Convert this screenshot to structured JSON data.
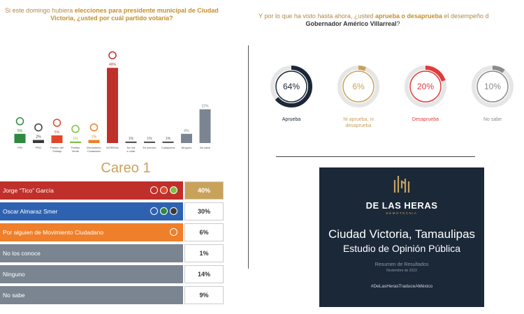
{
  "left_question": {
    "pre": "Si este domingo hubiera ",
    "bold": "elecciones para presidente municipal de Ciudad Victoria",
    "post": ",  ¿usted por cuál partido votaría?"
  },
  "right_question": {
    "pre": "Y por lo que ha visto hasta ahora, ¿usted ",
    "bold": "aprueba o desaprueba",
    "post": " el desempeño d",
    "line2": "Gobernador Américo Villarreal",
    "line2_end": "?"
  },
  "chart_data": [
    {
      "type": "bar",
      "categories": [
        "",
        "PRI",
        "PRD",
        "Partido del Trabajo",
        "Partido Verde",
        "Movimiento Ciudadano",
        "MORENA",
        "No iría a votar",
        "Es secreto",
        "Cualquiera",
        "Ninguno",
        "No sabe"
      ],
      "values": [
        null,
        6,
        2,
        5,
        1,
        2,
        49,
        1,
        1,
        1,
        6,
        22
      ],
      "data_labels": [
        "",
        "6%",
        "2%",
        "5%",
        "1%",
        "2%",
        "49%",
        "1%",
        "1%",
        "1%",
        "6%",
        "22%"
      ],
      "colors": [
        "#2e62b0",
        "#2d8a3e",
        "#3a3a3a",
        "#e0472a",
        "#7bc043",
        "#ef7f2a",
        "#c0302a",
        "#555555",
        "#555555",
        "#555555",
        "#7a8591",
        "#7a8591"
      ],
      "ylim": [
        0,
        50
      ]
    },
    {
      "type": "table",
      "title": "Careo 1",
      "rows": [
        {
          "label": "Jorge “Tico” García",
          "value": "40%",
          "color": "#c0302a"
        },
        {
          "label": "Oscar Almaraz Smer",
          "value": "30%",
          "color": "#2e62b0"
        },
        {
          "label": "Por alguien de Movimiento Ciudadano",
          "value": "6%",
          "color": "#ef7f2a"
        },
        {
          "label": "No los conoce",
          "value": "1%",
          "color": "#7a8591"
        },
        {
          "label": "Ninguno",
          "value": "14%",
          "color": "#7a8591"
        },
        {
          "label": "No sabe",
          "value": "9%",
          "color": "#7a8591"
        }
      ]
    },
    {
      "type": "pie",
      "categories": [
        "Aprueba",
        "Ni aprueba, ni desaprueba",
        "Desaprueba",
        "No sabe"
      ],
      "values": [
        64,
        6,
        20,
        10
      ],
      "labels": [
        "64%",
        "6%",
        "20%",
        "10%"
      ],
      "colors": [
        "#1b2838",
        "#c9a25a",
        "#e23a3a",
        "#8a8a8a"
      ]
    }
  ],
  "card": {
    "brand": "DE LAS HERAS",
    "sub": "DEMOTECNIA",
    "city": "Ciudad Victoria, Tamaulipas",
    "study": "Estudio de Opinión Pública",
    "res": "Resumen de Resultados",
    "date": "Noviembre de 2023",
    "tag": "#DeLasHerasTraduceAMéxico",
    "accent": "#c5a15d"
  }
}
